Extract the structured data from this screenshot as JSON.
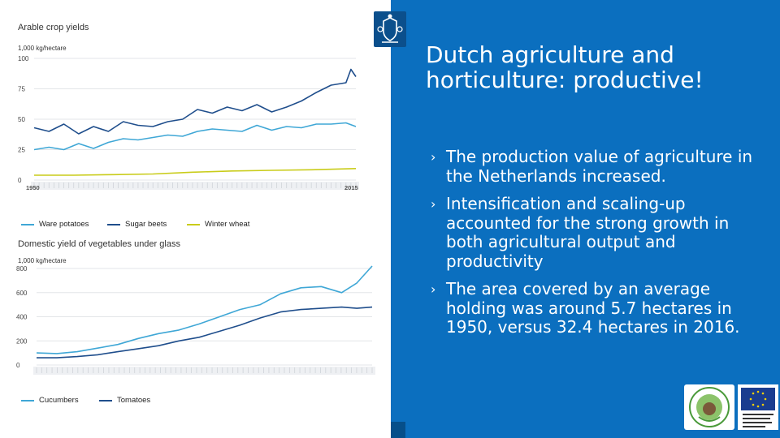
{
  "slide": {
    "title": "Dutch agriculture and horticulture: productive!",
    "bullets": [
      "The production value of agriculture in the Netherlands increased.",
      "Intensification and scaling-up accounted for the strong growth in both agricultural output and productivity",
      "The area covered by an average holding was around 5.7 hectares in 1950, versus 32.4 hectares in 2016."
    ],
    "bullet_marker": "›"
  },
  "colors": {
    "panel": "#0b6fbf",
    "light_series": "#3fa7d6",
    "dark_series": "#1f4e8c",
    "wheat": "#c9cc1a"
  },
  "chart_data": [
    {
      "type": "line",
      "title": "Arable crop yields",
      "ylabel": "1,000 kg/hectare",
      "x_ticks": [
        "1950",
        "2015"
      ],
      "y_ticks": [
        "100",
        "75",
        "50",
        "25",
        "0"
      ],
      "xlim": [
        1950,
        2015
      ],
      "ylim": [
        0,
        100
      ],
      "series": [
        {
          "name": "Ware potatoes",
          "color": "#3fa7d6",
          "x": [
            1950,
            1953,
            1956,
            1959,
            1962,
            1965,
            1968,
            1971,
            1974,
            1977,
            1980,
            1983,
            1986,
            1989,
            1992,
            1995,
            1998,
            2001,
            2004,
            2007,
            2010,
            2013,
            2015
          ],
          "values": [
            25,
            27,
            25,
            30,
            26,
            31,
            34,
            33,
            35,
            37,
            36,
            40,
            42,
            41,
            40,
            45,
            41,
            44,
            43,
            46,
            46,
            47,
            44
          ]
        },
        {
          "name": "Sugar beets",
          "color": "#1f4e8c",
          "x": [
            1950,
            1953,
            1956,
            1959,
            1962,
            1965,
            1968,
            1971,
            1974,
            1977,
            1980,
            1983,
            1986,
            1989,
            1992,
            1995,
            1998,
            2001,
            2004,
            2007,
            2010,
            2013,
            2014,
            2015
          ],
          "values": [
            43,
            40,
            46,
            38,
            44,
            40,
            48,
            45,
            44,
            48,
            50,
            58,
            55,
            60,
            57,
            62,
            56,
            60,
            65,
            72,
            78,
            80,
            91,
            85
          ]
        },
        {
          "name": "Winter wheat",
          "color": "#c9cc1a",
          "x": [
            1950,
            1958,
            1966,
            1974,
            1982,
            1990,
            1998,
            2006,
            2015
          ],
          "values": [
            4,
            4,
            4.5,
            5,
            6.5,
            7.5,
            8,
            8.5,
            9.5
          ]
        }
      ]
    },
    {
      "type": "line",
      "title": "Domestic yield of vegetables under glass",
      "ylabel": "1,000 kg/hectare",
      "x_ticks": [],
      "y_ticks": [
        "800",
        "600",
        "400",
        "200",
        "0"
      ],
      "xlim": [
        1950,
        2016
      ],
      "ylim": [
        0,
        800
      ],
      "series": [
        {
          "name": "Cucumbers",
          "color": "#3fa7d6",
          "x": [
            1950,
            1954,
            1958,
            1962,
            1966,
            1970,
            1974,
            1978,
            1982,
            1986,
            1990,
            1994,
            1998,
            2002,
            2006,
            2010,
            2013,
            2016
          ],
          "values": [
            100,
            95,
            110,
            140,
            170,
            220,
            260,
            290,
            340,
            400,
            460,
            500,
            590,
            640,
            650,
            600,
            680,
            820
          ]
        },
        {
          "name": "Tomatoes",
          "color": "#1f4e8c",
          "x": [
            1950,
            1954,
            1958,
            1962,
            1966,
            1970,
            1974,
            1978,
            1982,
            1986,
            1990,
            1994,
            1998,
            2002,
            2006,
            2010,
            2013,
            2016
          ],
          "values": [
            60,
            60,
            70,
            85,
            110,
            135,
            160,
            200,
            230,
            280,
            330,
            390,
            440,
            460,
            470,
            480,
            470,
            480
          ]
        }
      ]
    }
  ]
}
